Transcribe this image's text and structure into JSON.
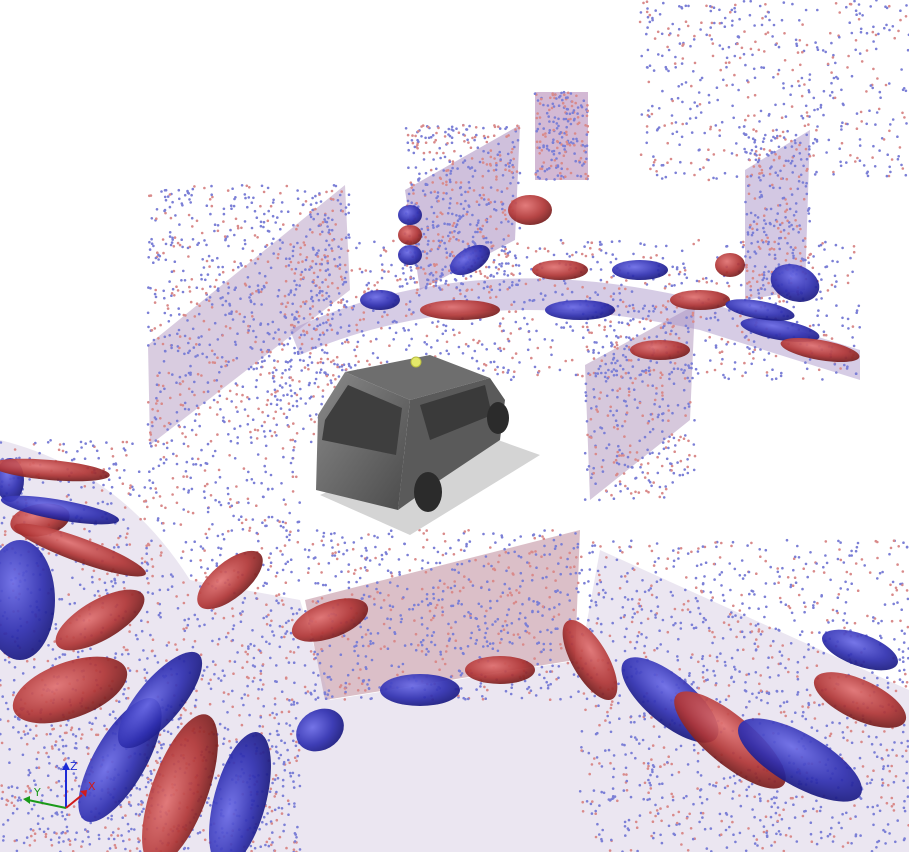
{
  "viewer": {
    "background_color": "#ffffff",
    "point_color": "#7b7fd6",
    "point_color_alt": "#d98a8a",
    "ellipsoid_colors": [
      "#2f2fb0",
      "#b03535"
    ],
    "vehicle_color": "#6a6a6a",
    "sensor_marker_color": "#e3e86a"
  },
  "axes_triad": {
    "z_label": "Z",
    "y_label": "Y",
    "x_label": "X",
    "z_color": "#1d2bd6",
    "y_color": "#1a9a1a",
    "x_color": "#d11a1a"
  }
}
